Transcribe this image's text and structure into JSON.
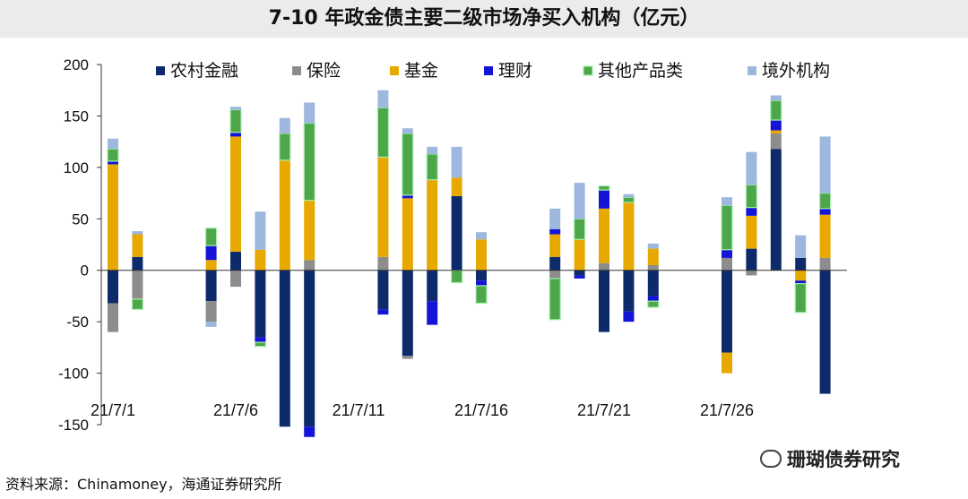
{
  "source": "资料来源：Chinamoney，海通证券研究所",
  "watermark": "珊瑚债券研究",
  "chart_data": {
    "type": "bar",
    "stacked": true,
    "title": "7-10 年政金债主要二级市场净买入机构（亿元）",
    "ylim": [
      -150,
      200
    ],
    "yticks": [
      -150,
      -100,
      -50,
      0,
      50,
      100,
      150,
      200
    ],
    "xlabel": "",
    "ylabel": "",
    "x_tick_labels": [
      "21/7/1",
      "21/7/6",
      "21/7/11",
      "21/7/16",
      "21/7/21",
      "21/7/26"
    ],
    "x_tick_days": [
      1,
      6,
      11,
      16,
      21,
      26
    ],
    "legend_position": "top",
    "days": [
      1,
      2,
      5,
      6,
      7,
      8,
      9,
      12,
      13,
      14,
      15,
      16,
      19,
      20,
      21,
      22,
      23,
      26,
      27,
      28,
      29,
      30
    ],
    "series": [
      {
        "name": "农村金融",
        "color": "#0d2a6b",
        "values": [
          -32,
          13,
          -30,
          18,
          -65,
          -152,
          -152,
          -38,
          -83,
          -30,
          72,
          -10,
          13,
          -5,
          -60,
          -40,
          -25,
          -80,
          21,
          118,
          12,
          -120
        ]
      },
      {
        "name": "保险",
        "color": "#8c8c8c",
        "values": [
          -28,
          -28,
          -20,
          -16,
          0,
          0,
          10,
          13,
          -3,
          0,
          0,
          0,
          -8,
          0,
          7,
          0,
          5,
          12,
          -5,
          15,
          0,
          12
        ]
      },
      {
        "name": "基金",
        "color": "#e7a800",
        "values": [
          103,
          22,
          10,
          112,
          20,
          107,
          58,
          97,
          70,
          88,
          18,
          30,
          22,
          30,
          53,
          66,
          16,
          -20,
          32,
          3,
          -10,
          42
        ]
      },
      {
        "name": "理财",
        "color": "#1414d8",
        "values": [
          3,
          0,
          14,
          4,
          -5,
          0,
          -10,
          -5,
          3,
          -23,
          0,
          -5,
          5,
          -3,
          18,
          -10,
          -5,
          8,
          8,
          10,
          -3,
          6
        ]
      },
      {
        "name": "其他产品类",
        "color": "#4ea64a",
        "values": [
          12,
          -10,
          17,
          22,
          -4,
          26,
          75,
          48,
          60,
          25,
          -12,
          -17,
          -40,
          20,
          4,
          5,
          -6,
          43,
          22,
          19,
          -28,
          15
        ]
      },
      {
        "name": "境外机构",
        "color": "#9db7de",
        "values": [
          10,
          3,
          -5,
          3,
          37,
          15,
          20,
          17,
          5,
          7,
          30,
          7,
          20,
          35,
          0,
          3,
          5,
          8,
          32,
          5,
          22,
          55
        ]
      }
    ]
  }
}
